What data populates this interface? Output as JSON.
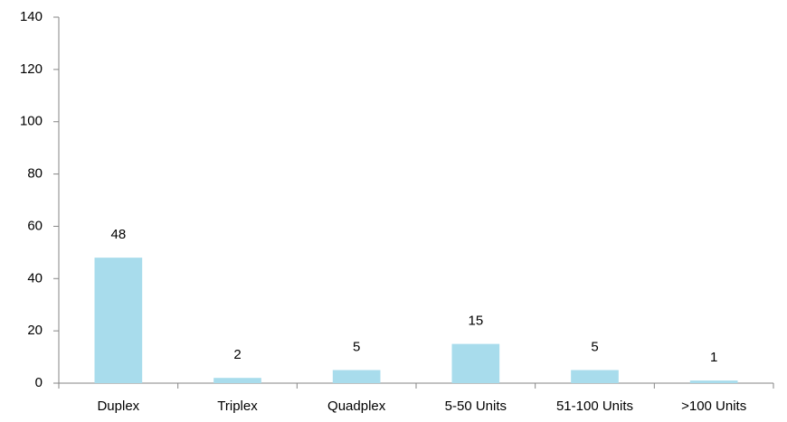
{
  "chart_data": {
    "type": "bar",
    "categories": [
      "Duplex",
      "Triplex",
      "Quadplex",
      "5-50 Units",
      "51-100 Units",
      ">100 Units"
    ],
    "values": [
      48,
      2,
      5,
      15,
      5,
      1
    ],
    "color": "#a8dcec",
    "ylim": [
      0,
      140
    ],
    "yticks": [
      0,
      20,
      40,
      60,
      80,
      100,
      120,
      140
    ],
    "grid": false
  }
}
